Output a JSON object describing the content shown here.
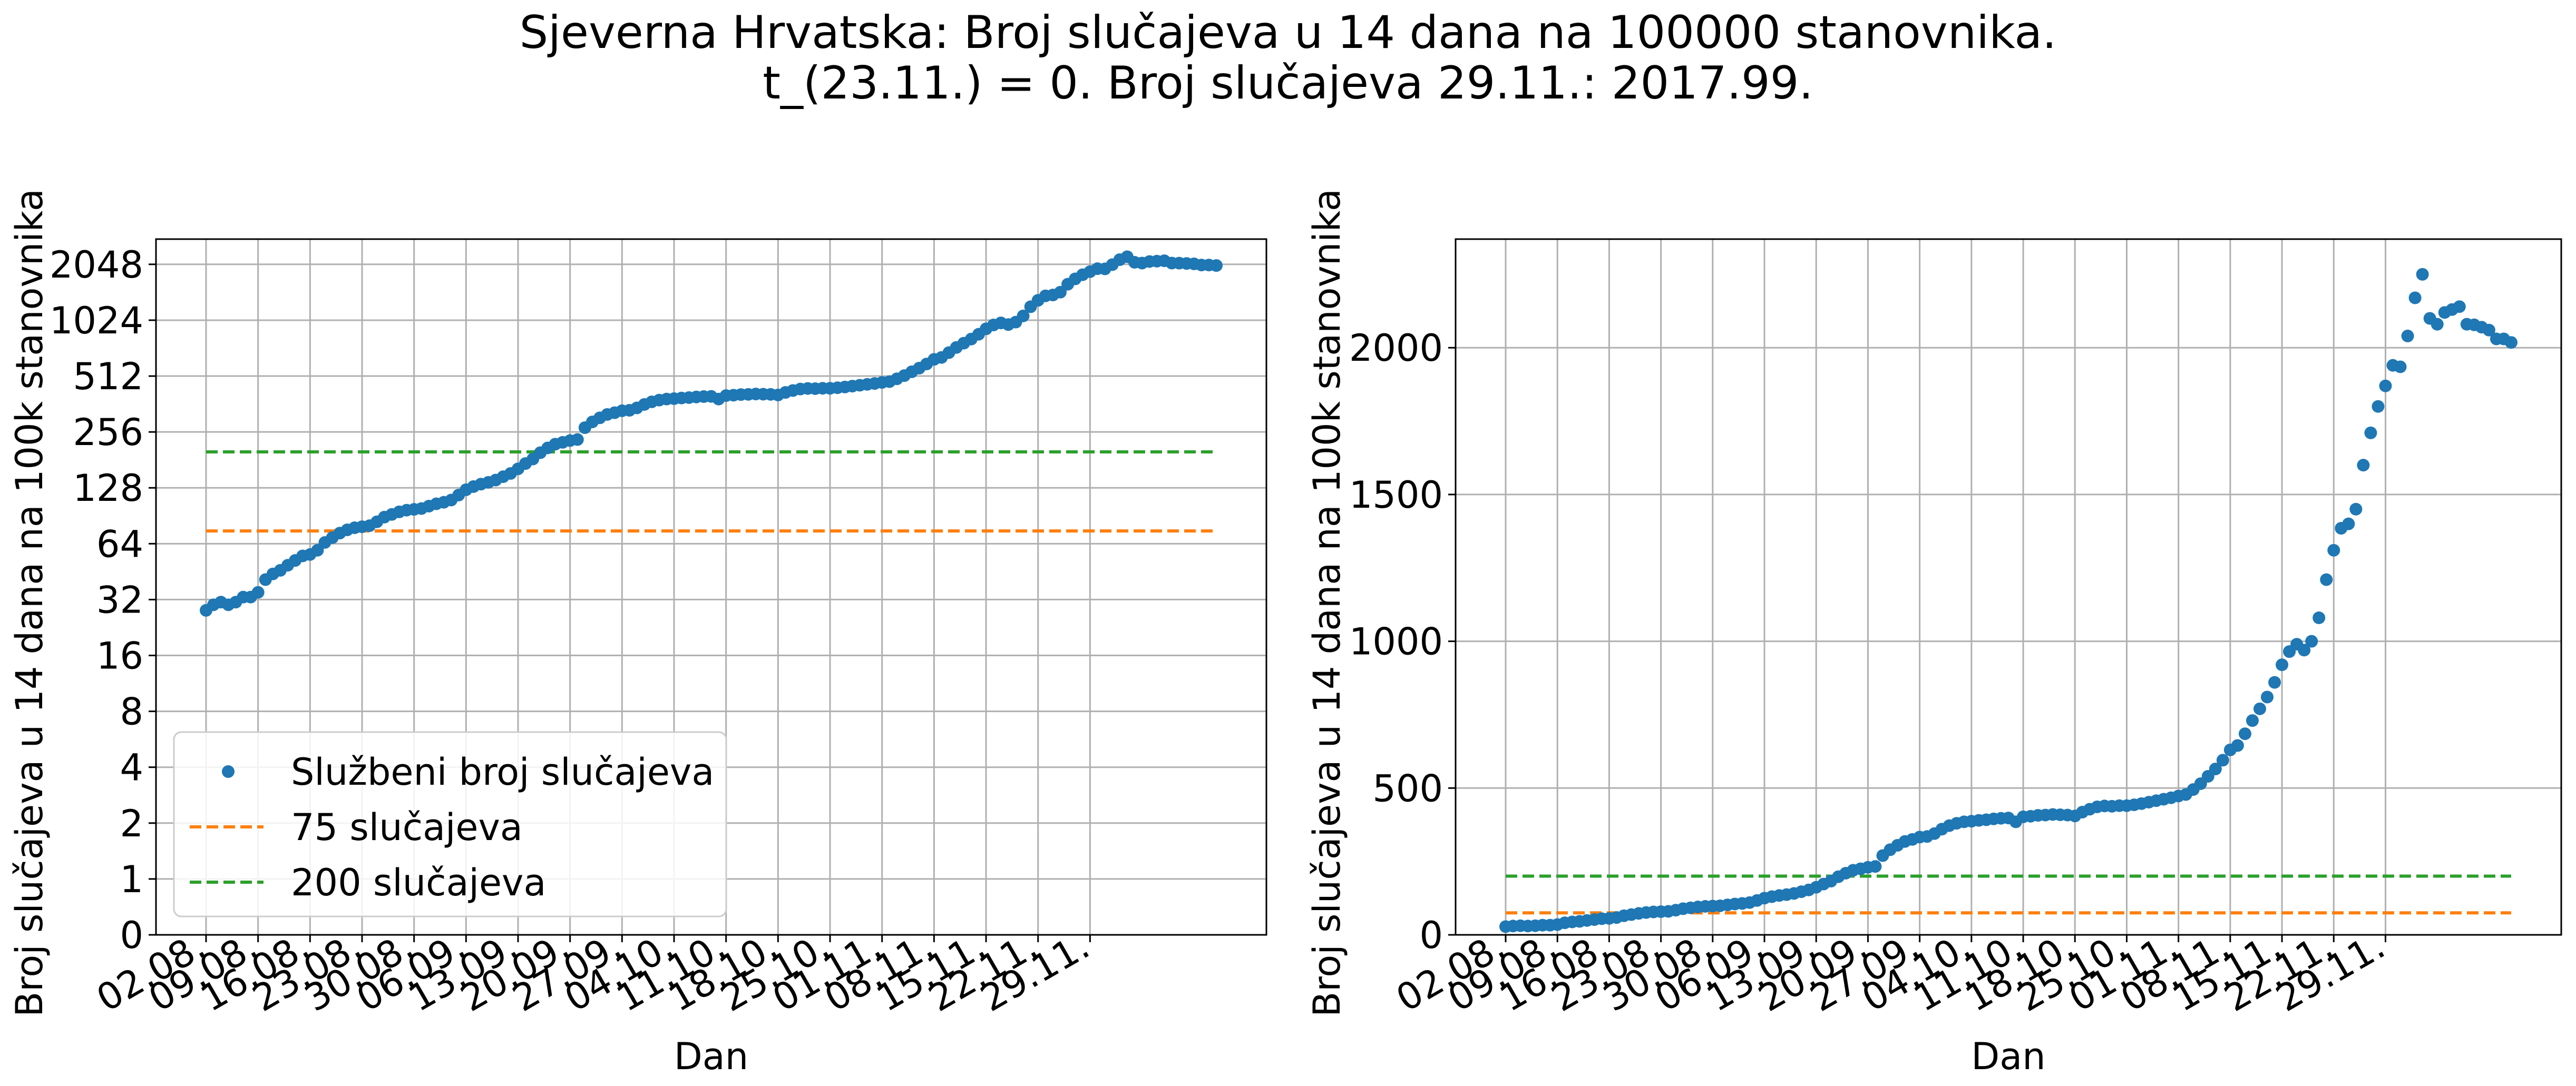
{
  "title_lines": [
    "Sjeverna Hrvatska: Broj slučajeva u 14 dana na 100000 stanovnika.",
    "t_(23.11.) = 0. Broj slučajeva 29.11.: 2017.99."
  ],
  "colors": {
    "series": "#1f77b4",
    "line75": "#ff7f0e",
    "line200": "#2ca02c",
    "grid": "#b0b0b0"
  },
  "chart_data": [
    {
      "type": "scatter",
      "yscale": "log2",
      "xlabel": "Dan",
      "ylabel": "Broj slučajeva u 14 dana na 100k stanovnika",
      "xticks": [
        "02.08.",
        "09.08.",
        "16.08.",
        "23.08.",
        "30.08.",
        "06.09.",
        "13.09.",
        "20.09.",
        "27.09.",
        "04.10.",
        "11.10.",
        "18.10.",
        "25.10.",
        "01.11.",
        "08.11.",
        "15.11.",
        "22.11.",
        "29.11."
      ],
      "yticks": [
        "0",
        "1",
        "2",
        "4",
        "8",
        "16",
        "32",
        "64",
        "128",
        "256",
        "512",
        "1024",
        "2048"
      ],
      "ylim": [
        0,
        2800
      ],
      "grid": true,
      "legend": {
        "position": "lower-left",
        "entries": [
          "Službeni broj slučajeva",
          "75 slučajeva",
          "200 slučajeva"
        ]
      },
      "series": [
        {
          "name": "Službeni broj slučajeva"
        }
      ],
      "hlines": [
        {
          "name": "75 slučajeva",
          "value": 75
        },
        {
          "name": "200 slučajeva",
          "value": 200
        }
      ]
    },
    {
      "type": "scatter",
      "yscale": "linear",
      "xlabel": "Dan",
      "ylabel": "Broj slučajeva u 14 dana na 100k stanovnika",
      "xticks": [
        "02.08.",
        "09.08.",
        "16.08.",
        "23.08.",
        "30.08.",
        "06.09.",
        "13.09.",
        "20.09.",
        "27.09.",
        "04.10.",
        "11.10.",
        "18.10.",
        "25.10.",
        "01.11.",
        "08.11.",
        "15.11.",
        "22.11.",
        "29.11."
      ],
      "yticks": [
        "0",
        "500",
        "1000",
        "1500",
        "2000"
      ],
      "ylim": [
        0,
        2370
      ],
      "grid": true,
      "hlines": [
        {
          "name": "75 slučajeva",
          "value": 75
        },
        {
          "name": "200 slučajeva",
          "value": 200
        }
      ]
    }
  ],
  "series_data": {
    "name": "Službeni broj slučajeva",
    "start_date": "02.08.",
    "values": [
      28,
      30,
      31,
      30,
      31,
      33,
      33,
      35,
      41,
      44,
      46,
      49,
      52,
      55,
      56,
      59,
      65,
      69,
      73,
      76,
      78,
      79,
      80,
      84,
      89,
      92,
      95,
      97,
      98,
      99,
      102,
      105,
      107,
      110,
      117,
      125,
      130,
      134,
      137,
      141,
      147,
      153,
      162,
      173,
      183,
      198,
      210,
      220,
      225,
      230,
      233,
      270,
      290,
      305,
      318,
      325,
      333,
      335,
      345,
      360,
      372,
      380,
      385,
      387,
      390,
      392,
      395,
      397,
      398,
      385,
      402,
      404,
      407,
      408,
      410,
      409,
      408,
      405,
      418,
      428,
      436,
      439,
      438,
      440,
      440,
      443,
      447,
      452,
      457,
      462,
      467,
      473,
      478,
      495,
      515,
      540,
      565,
      595,
      630,
      645,
      685,
      730,
      770,
      810,
      860,
      920,
      965,
      990,
      970,
      1000,
      1080,
      1210,
      1310,
      1385,
      1400,
      1450,
      1600,
      1710,
      1800,
      1870,
      1940,
      1935,
      2040,
      2170,
      2250,
      2100,
      2080,
      2120,
      2130,
      2140,
      2080,
      2078,
      2070,
      2060,
      2030,
      2030,
      2018
    ]
  }
}
